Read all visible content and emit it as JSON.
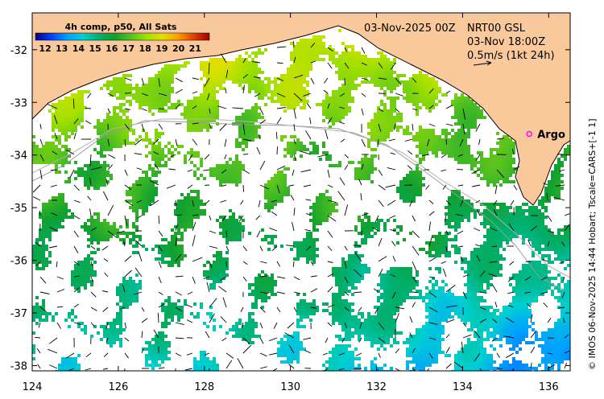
{
  "map": {
    "date_label": "03-Nov-2025 00Z",
    "product_label": "NRT00 GSL",
    "time_label": "03-Nov 18:00Z",
    "scale_label": "0.5m/s (1kt 24h)",
    "credit": "© IMOS 06-Nov-2025 14:44 Hobart; Tscale=CARS+[-1 1]",
    "land_color": "#f9c99b",
    "coast_color": "#000000",
    "lon_range": [
      124,
      136.5
    ],
    "lat_range": [
      -38.1,
      -31.3
    ],
    "lon_ticks": [
      124,
      126,
      128,
      130,
      132,
      134,
      136
    ],
    "lat_ticks": [
      -32,
      -33,
      -34,
      -35,
      -36,
      -37,
      -38
    ],
    "lon_tick_labels": [
      "124",
      "126",
      "128",
      "130",
      "132",
      "134",
      "136"
    ],
    "lat_tick_labels": [
      "-32",
      "-33",
      "-34",
      "-35",
      "-36",
      "-37",
      "-38"
    ]
  },
  "colorbar": {
    "title": "4h comp, p50, All Sats",
    "labels": [
      "12",
      "13",
      "14",
      "15",
      "16",
      "17",
      "18",
      "19",
      "20",
      "21"
    ],
    "vmin": 11.5,
    "vmax": 22.0,
    "colors": [
      "#00008f",
      "#0040ff",
      "#00a0ff",
      "#00d0d0",
      "#00b070",
      "#10a030",
      "#50c020",
      "#a0e000",
      "#e0e000",
      "#ffa000",
      "#e04000",
      "#a00000"
    ]
  },
  "argo": {
    "label": "Argo",
    "lon": 135.55,
    "lat": -33.6,
    "color": "#ff00ff"
  }
}
